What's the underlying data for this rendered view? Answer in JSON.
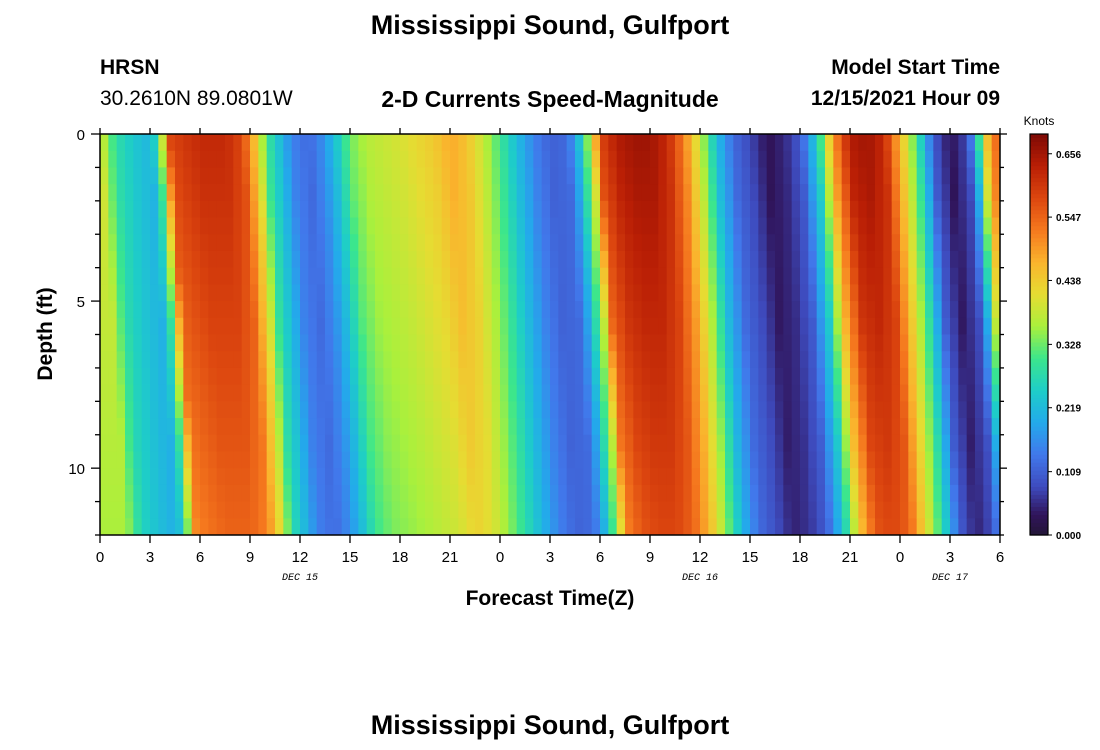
{
  "page": {
    "title": "Mississippi Sound, Gulfport",
    "station_id": "HRSN",
    "station_coords": "30.2610N  89.0801W",
    "subtitle": "2-D Currents Speed-Magnitude",
    "model_start_label": "Model Start Time",
    "model_start_value": "12/15/2021 Hour 09",
    "second_title": "Mississippi Sound, Gulfport"
  },
  "chart_data": {
    "type": "heatmap",
    "title": "2-D Currents Speed-Magnitude",
    "xlabel": "Forecast Time(Z)",
    "ylabel": "Depth (ft)",
    "x_range_hours": [
      0,
      54
    ],
    "y_range_ft": [
      0,
      12
    ],
    "x_ticks": [
      "0",
      "3",
      "6",
      "9",
      "12",
      "15",
      "18",
      "21",
      "0",
      "3",
      "6",
      "9",
      "12",
      "15",
      "18",
      "21",
      "0",
      "3",
      "6"
    ],
    "y_ticks": [
      "0",
      "5",
      "10"
    ],
    "date_labels": [
      {
        "label": "DEC 15",
        "hour": 12
      },
      {
        "label": "DEC 16",
        "hour": 36
      },
      {
        "label": "DEC 17",
        "hour": 51
      }
    ],
    "colorbar": {
      "unit": "Knots",
      "min": 0.0,
      "max": 0.69,
      "ticks": [
        "0.000",
        "0.109",
        "0.219",
        "0.328",
        "0.438",
        "0.547",
        "0.656"
      ]
    },
    "surface_speed_profile": {
      "hours": [
        0,
        0.5,
        1,
        2,
        3,
        3.5,
        4.2,
        5,
        6,
        7.5,
        8.5,
        9.3,
        10,
        10.8,
        11.5,
        12.5,
        13.3,
        14,
        15,
        16,
        18,
        20,
        21,
        22,
        23,
        24,
        25,
        26,
        27,
        28,
        28.6,
        29.5,
        30,
        31,
        32,
        33,
        34,
        35,
        36,
        37,
        38,
        39,
        40,
        41,
        42,
        43,
        44,
        45,
        46,
        47,
        48,
        49,
        50,
        51,
        52,
        52.5,
        53,
        53.5,
        54
      ],
      "knots": [
        0.4,
        0.33,
        0.28,
        0.24,
        0.21,
        0.3,
        0.58,
        0.6,
        0.62,
        0.62,
        0.58,
        0.45,
        0.3,
        0.22,
        0.15,
        0.12,
        0.16,
        0.22,
        0.33,
        0.37,
        0.4,
        0.44,
        0.48,
        0.45,
        0.38,
        0.3,
        0.22,
        0.15,
        0.11,
        0.12,
        0.2,
        0.4,
        0.58,
        0.64,
        0.66,
        0.66,
        0.62,
        0.52,
        0.38,
        0.22,
        0.12,
        0.08,
        0.03,
        0.05,
        0.1,
        0.25,
        0.5,
        0.64,
        0.66,
        0.62,
        0.46,
        0.3,
        0.1,
        0.03,
        0.08,
        0.2,
        0.4,
        0.52,
        0.55
      ]
    }
  }
}
